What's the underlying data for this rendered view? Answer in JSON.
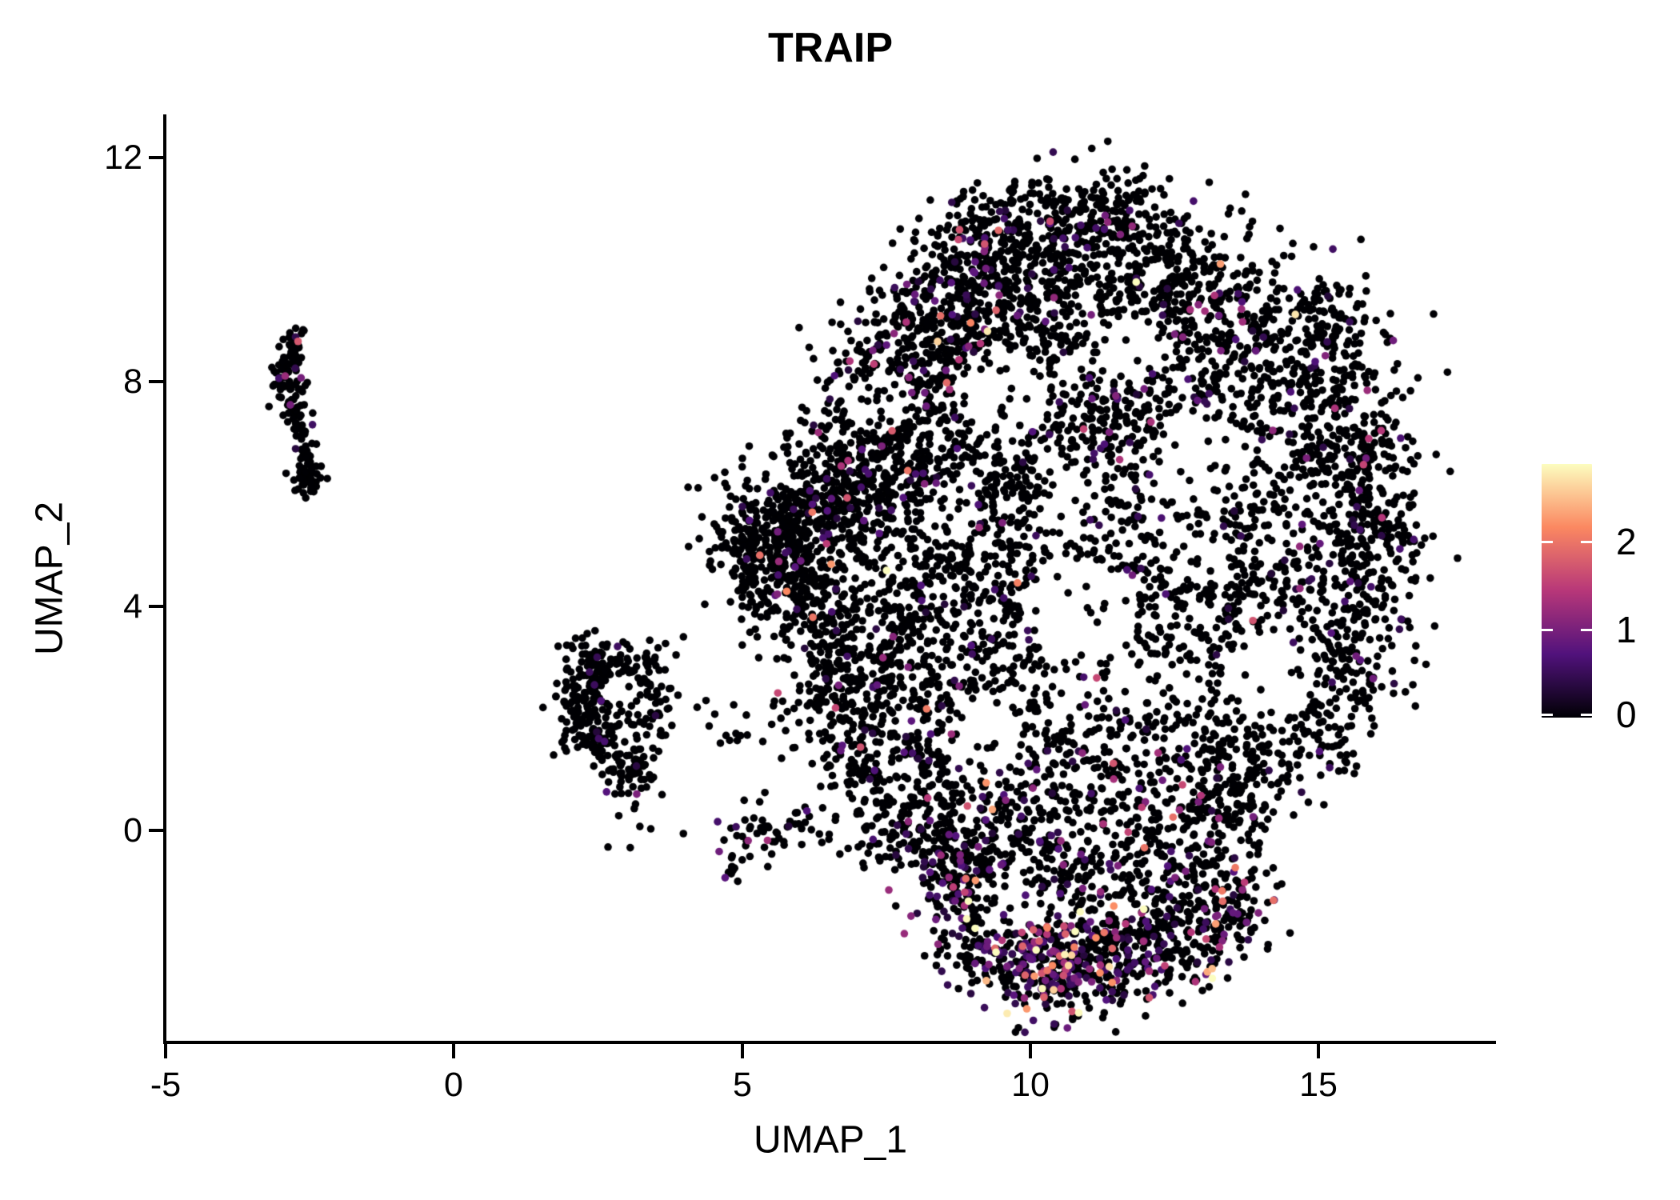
{
  "title": "TRAIP",
  "chart_data": {
    "type": "scatter",
    "title": "TRAIP",
    "xlabel": "UMAP_1",
    "ylabel": "UMAP_2",
    "xlim": [
      -5.0,
      18.1
    ],
    "ylim": [
      -3.78,
      12.77
    ],
    "x_tick_values": [
      -5,
      0,
      5,
      10,
      15
    ],
    "x_tick_labels": [
      "-5",
      "0",
      "5",
      "10",
      "15"
    ],
    "y_tick_values": [
      0,
      4,
      8,
      12
    ],
    "y_tick_labels": [
      "0",
      "4",
      "8",
      "12"
    ],
    "grid": false,
    "legend_position": "right",
    "colorbar": {
      "vmin": 0,
      "vmax": 2.89,
      "tick_values": [
        0,
        1,
        2
      ],
      "tick_labels": [
        "0",
        "1",
        "2"
      ],
      "palette": "magma",
      "stops": [
        {
          "t": 0.0,
          "color": "#000004"
        },
        {
          "t": 0.25,
          "color": "#51127c"
        },
        {
          "t": 0.5,
          "color": "#b73779"
        },
        {
          "t": 0.75,
          "color": "#fb8861"
        },
        {
          "t": 1.0,
          "color": "#fcfdbf"
        }
      ]
    },
    "zero_expression_color": "#000004",
    "point_radius_px": 4.8,
    "seed": 20240042,
    "clusters": [
      {
        "cx": -2.78,
        "cy": 8.6,
        "sx": 0.1,
        "sy": 0.18,
        "n": 28,
        "c": 0.04
      },
      {
        "cx": -2.93,
        "cy": 8.15,
        "sx": 0.11,
        "sy": 0.22,
        "n": 38,
        "c": 0.05
      },
      {
        "cx": -2.8,
        "cy": 7.55,
        "sx": 0.11,
        "sy": 0.28,
        "n": 40,
        "c": 0.05
      },
      {
        "cx": -2.62,
        "cy": 7.05,
        "sx": 0.09,
        "sy": 0.18,
        "n": 22,
        "c": 0.04
      },
      {
        "cx": -2.52,
        "cy": 6.45,
        "sx": 0.11,
        "sy": 0.2,
        "n": 32,
        "c": 0.06
      },
      {
        "cx": -2.62,
        "cy": 6.15,
        "sx": 0.14,
        "sy": 0.1,
        "n": 18,
        "c": 0.05
      },
      {
        "cx": 2.45,
        "cy": 2.95,
        "sx": 0.28,
        "sy": 0.33,
        "n": 85,
        "c": 0.05
      },
      {
        "cx": 2.25,
        "cy": 2.25,
        "sx": 0.24,
        "sy": 0.33,
        "n": 75,
        "c": 0.05
      },
      {
        "cx": 2.6,
        "cy": 1.6,
        "sx": 0.28,
        "sy": 0.28,
        "n": 75,
        "c": 0.06
      },
      {
        "cx": 3.05,
        "cy": 1.15,
        "sx": 0.28,
        "sy": 0.22,
        "n": 60,
        "c": 0.07
      },
      {
        "cx": 3.05,
        "cy": 2.95,
        "sx": 0.33,
        "sy": 0.22,
        "n": 55,
        "c": 0.04
      },
      {
        "cx": 3.35,
        "cy": 2.3,
        "sx": 0.22,
        "sy": 0.28,
        "n": 45,
        "c": 0.04
      },
      {
        "cx": 4.7,
        "cy": 2.0,
        "sx": 0.8,
        "sy": 0.22,
        "n": 30,
        "c": 0.03
      },
      {
        "cx": 5.55,
        "cy": 0.0,
        "sx": 0.5,
        "sy": 0.26,
        "n": 55,
        "c": 0.08
      },
      {
        "cx": 4.85,
        "cy": -0.6,
        "sx": 0.12,
        "sy": 0.14,
        "n": 12,
        "c": 0.25
      },
      {
        "cx": 3.2,
        "cy": 0.35,
        "sx": 0.25,
        "sy": 0.33,
        "n": 10,
        "c": 0.05
      },
      {
        "cx": 5.3,
        "cy": 5.0,
        "sx": 0.45,
        "sy": 0.55,
        "n": 260,
        "c": 0.04
      },
      {
        "cx": 6.0,
        "cy": 4.3,
        "sx": 0.5,
        "sy": 0.6,
        "n": 220,
        "c": 0.05
      },
      {
        "cx": 6.3,
        "cy": 5.6,
        "sx": 0.5,
        "sy": 0.5,
        "n": 200,
        "c": 0.05
      },
      {
        "cx": 7.0,
        "cy": 6.3,
        "sx": 0.6,
        "sy": 0.6,
        "n": 220,
        "c": 0.06
      },
      {
        "cx": 7.8,
        "cy": 7.2,
        "sx": 0.7,
        "sy": 0.7,
        "n": 240,
        "c": 0.07
      },
      {
        "cx": 8.8,
        "cy": 8.2,
        "sx": 0.8,
        "sy": 0.8,
        "n": 260,
        "c": 0.1
      },
      {
        "cx": 9.8,
        "cy": 9.2,
        "sx": 0.8,
        "sy": 0.8,
        "n": 260,
        "c": 0.1
      },
      {
        "cx": 11.0,
        "cy": 10.3,
        "sx": 0.9,
        "sy": 0.7,
        "n": 240,
        "c": 0.08
      },
      {
        "cx": 11.4,
        "cy": 11.1,
        "sx": 0.5,
        "sy": 0.35,
        "n": 80,
        "c": 0.05
      },
      {
        "cx": 12.6,
        "cy": 9.8,
        "sx": 0.8,
        "sy": 0.7,
        "n": 220,
        "c": 0.08
      },
      {
        "cx": 13.8,
        "cy": 9.0,
        "sx": 0.8,
        "sy": 0.7,
        "n": 200,
        "c": 0.06
      },
      {
        "cx": 15.0,
        "cy": 7.8,
        "sx": 0.7,
        "sy": 0.8,
        "n": 200,
        "c": 0.05
      },
      {
        "cx": 15.8,
        "cy": 6.3,
        "sx": 0.5,
        "sy": 0.8,
        "n": 180,
        "c": 0.05
      },
      {
        "cx": 15.9,
        "cy": 4.6,
        "sx": 0.5,
        "sy": 0.8,
        "n": 170,
        "c": 0.05
      },
      {
        "cx": 15.3,
        "cy": 3.0,
        "sx": 0.6,
        "sy": 0.7,
        "n": 160,
        "c": 0.05
      },
      {
        "cx": 14.3,
        "cy": 1.7,
        "sx": 0.7,
        "sy": 0.6,
        "n": 170,
        "c": 0.06
      },
      {
        "cx": 13.2,
        "cy": 0.6,
        "sx": 0.7,
        "sy": 0.6,
        "n": 170,
        "c": 0.06
      },
      {
        "cx": 9.0,
        "cy": 6.0,
        "sx": 0.9,
        "sy": 0.9,
        "n": 240,
        "c": 0.07
      },
      {
        "cx": 10.5,
        "cy": 7.0,
        "sx": 0.9,
        "sy": 0.9,
        "n": 220,
        "c": 0.07
      },
      {
        "cx": 12.0,
        "cy": 7.5,
        "sx": 0.9,
        "sy": 0.8,
        "n": 200,
        "c": 0.06
      },
      {
        "cx": 13.5,
        "cy": 6.5,
        "sx": 0.9,
        "sy": 0.9,
        "n": 190,
        "c": 0.05
      },
      {
        "cx": 14.0,
        "cy": 4.8,
        "sx": 0.8,
        "sy": 0.8,
        "n": 180,
        "c": 0.05
      },
      {
        "cx": 12.8,
        "cy": 3.5,
        "sx": 0.9,
        "sy": 0.8,
        "n": 190,
        "c": 0.06
      },
      {
        "cx": 11.5,
        "cy": 4.8,
        "sx": 0.9,
        "sy": 0.9,
        "n": 200,
        "c": 0.06
      },
      {
        "cx": 10.0,
        "cy": 3.8,
        "sx": 0.9,
        "sy": 0.9,
        "n": 200,
        "c": 0.07
      },
      {
        "cx": 8.4,
        "cy": 4.4,
        "sx": 0.8,
        "sy": 0.8,
        "n": 200,
        "c": 0.06
      },
      {
        "cx": 7.6,
        "cy": 2.9,
        "sx": 0.7,
        "sy": 0.8,
        "n": 190,
        "c": 0.06
      },
      {
        "cx": 8.6,
        "cy": 1.5,
        "sx": 0.7,
        "sy": 0.8,
        "n": 190,
        "c": 0.08
      },
      {
        "cx": 9.8,
        "cy": 0.6,
        "sx": 0.7,
        "sy": 0.8,
        "n": 200,
        "c": 0.12
      },
      {
        "cx": 11.2,
        "cy": 1.8,
        "sx": 0.9,
        "sy": 0.8,
        "n": 190,
        "c": 0.07
      },
      {
        "cx": 12.2,
        "cy": -0.3,
        "sx": 0.8,
        "sy": 0.6,
        "n": 170,
        "c": 0.1
      },
      {
        "cx": 10.8,
        "cy": -0.9,
        "sx": 0.7,
        "sy": 0.6,
        "n": 160,
        "c": 0.15
      },
      {
        "cx": 7.2,
        "cy": 8.0,
        "sx": 0.4,
        "sy": 0.5,
        "n": 110,
        "c": 0.08
      },
      {
        "cx": 8.2,
        "cy": 9.3,
        "sx": 0.5,
        "sy": 0.6,
        "n": 130,
        "c": 0.1
      },
      {
        "cx": 9.0,
        "cy": 10.2,
        "sx": 0.5,
        "sy": 0.5,
        "n": 130,
        "c": 0.08
      },
      {
        "cx": 10.0,
        "cy": 10.8,
        "sx": 0.6,
        "sy": 0.4,
        "n": 120,
        "c": 0.06
      },
      {
        "cx": 15.2,
        "cy": 8.9,
        "sx": 0.4,
        "sy": 0.5,
        "n": 80,
        "c": 0.05
      },
      {
        "cx": 6.6,
        "cy": 2.8,
        "sx": 0.35,
        "sy": 0.6,
        "n": 120,
        "c": 0.05
      },
      {
        "cx": 7.1,
        "cy": 1.4,
        "sx": 0.4,
        "sy": 0.6,
        "n": 130,
        "c": 0.06
      },
      {
        "cx": 7.9,
        "cy": 0.2,
        "sx": 0.45,
        "sy": 0.5,
        "n": 130,
        "c": 0.08
      },
      {
        "cx": 8.6,
        "cy": -0.7,
        "sx": 0.4,
        "sy": 0.45,
        "n": 110,
        "c": 0.15
      },
      {
        "cx": 9.4,
        "cy": -2.0,
        "sx": 0.55,
        "sy": 0.5,
        "n": 200,
        "c": 0.3,
        "vm": 0.7
      },
      {
        "cx": 10.4,
        "cy": -2.5,
        "sx": 0.5,
        "sy": 0.45,
        "n": 200,
        "c": 0.35,
        "vm": 0.7
      },
      {
        "cx": 11.4,
        "cy": -2.3,
        "sx": 0.55,
        "sy": 0.5,
        "n": 180,
        "c": 0.28,
        "vm": 0.7
      },
      {
        "cx": 12.5,
        "cy": -1.9,
        "sx": 0.55,
        "sy": 0.45,
        "n": 160,
        "c": 0.2,
        "vm": 0.6
      },
      {
        "cx": 13.4,
        "cy": -1.3,
        "sx": 0.4,
        "sy": 0.45,
        "n": 110,
        "c": 0.12,
        "vm": 0.6
      },
      {
        "cx": 9.0,
        "cy": -0.8,
        "sx": 0.4,
        "sy": 0.5,
        "n": 90,
        "c": 0.2,
        "vm": 0.6
      }
    ],
    "holes": [
      {
        "x": 9.5,
        "y": 7.8,
        "r": 0.85,
        "keep": 0.15
      },
      {
        "x": 12.9,
        "y": 6.6,
        "r": 0.85,
        "keep": 0.15
      },
      {
        "x": 10.9,
        "y": 3.9,
        "r": 0.95,
        "keep": 0.12
      },
      {
        "x": 14.2,
        "y": 2.8,
        "r": 0.75,
        "keep": 0.15
      },
      {
        "x": 9.2,
        "y": 1.6,
        "r": 0.75,
        "keep": 0.15
      },
      {
        "x": 7.35,
        "y": 7.62,
        "r": 0.55,
        "keep": 0.1
      },
      {
        "x": 2.87,
        "y": 2.52,
        "r": 0.33,
        "keep": 0.1
      },
      {
        "x": 11.8,
        "y": 8.6,
        "r": 0.55,
        "keep": 0.2
      },
      {
        "x": 10.7,
        "y": 5.8,
        "r": 0.6,
        "keep": 0.25
      },
      {
        "x": 13.0,
        "y": 5.0,
        "r": 0.6,
        "keep": 0.25
      },
      {
        "x": 8.6,
        "y": 5.6,
        "r": 0.5,
        "keep": 0.3
      },
      {
        "x": 12.0,
        "y": 2.6,
        "r": 0.55,
        "keep": 0.25
      },
      {
        "x": 9.6,
        "y": -1.3,
        "r": 0.55,
        "keep": 0.2
      }
    ],
    "highlight_points": [
      {
        "x": 13.3,
        "y": 10.1,
        "v": 2.3
      },
      {
        "x": 14.6,
        "y": 9.2,
        "v": 2.75
      },
      {
        "x": 9.45,
        "y": 10.7,
        "v": 1.9
      },
      {
        "x": 11.45,
        "y": -1.35,
        "v": 2.2
      }
    ]
  }
}
